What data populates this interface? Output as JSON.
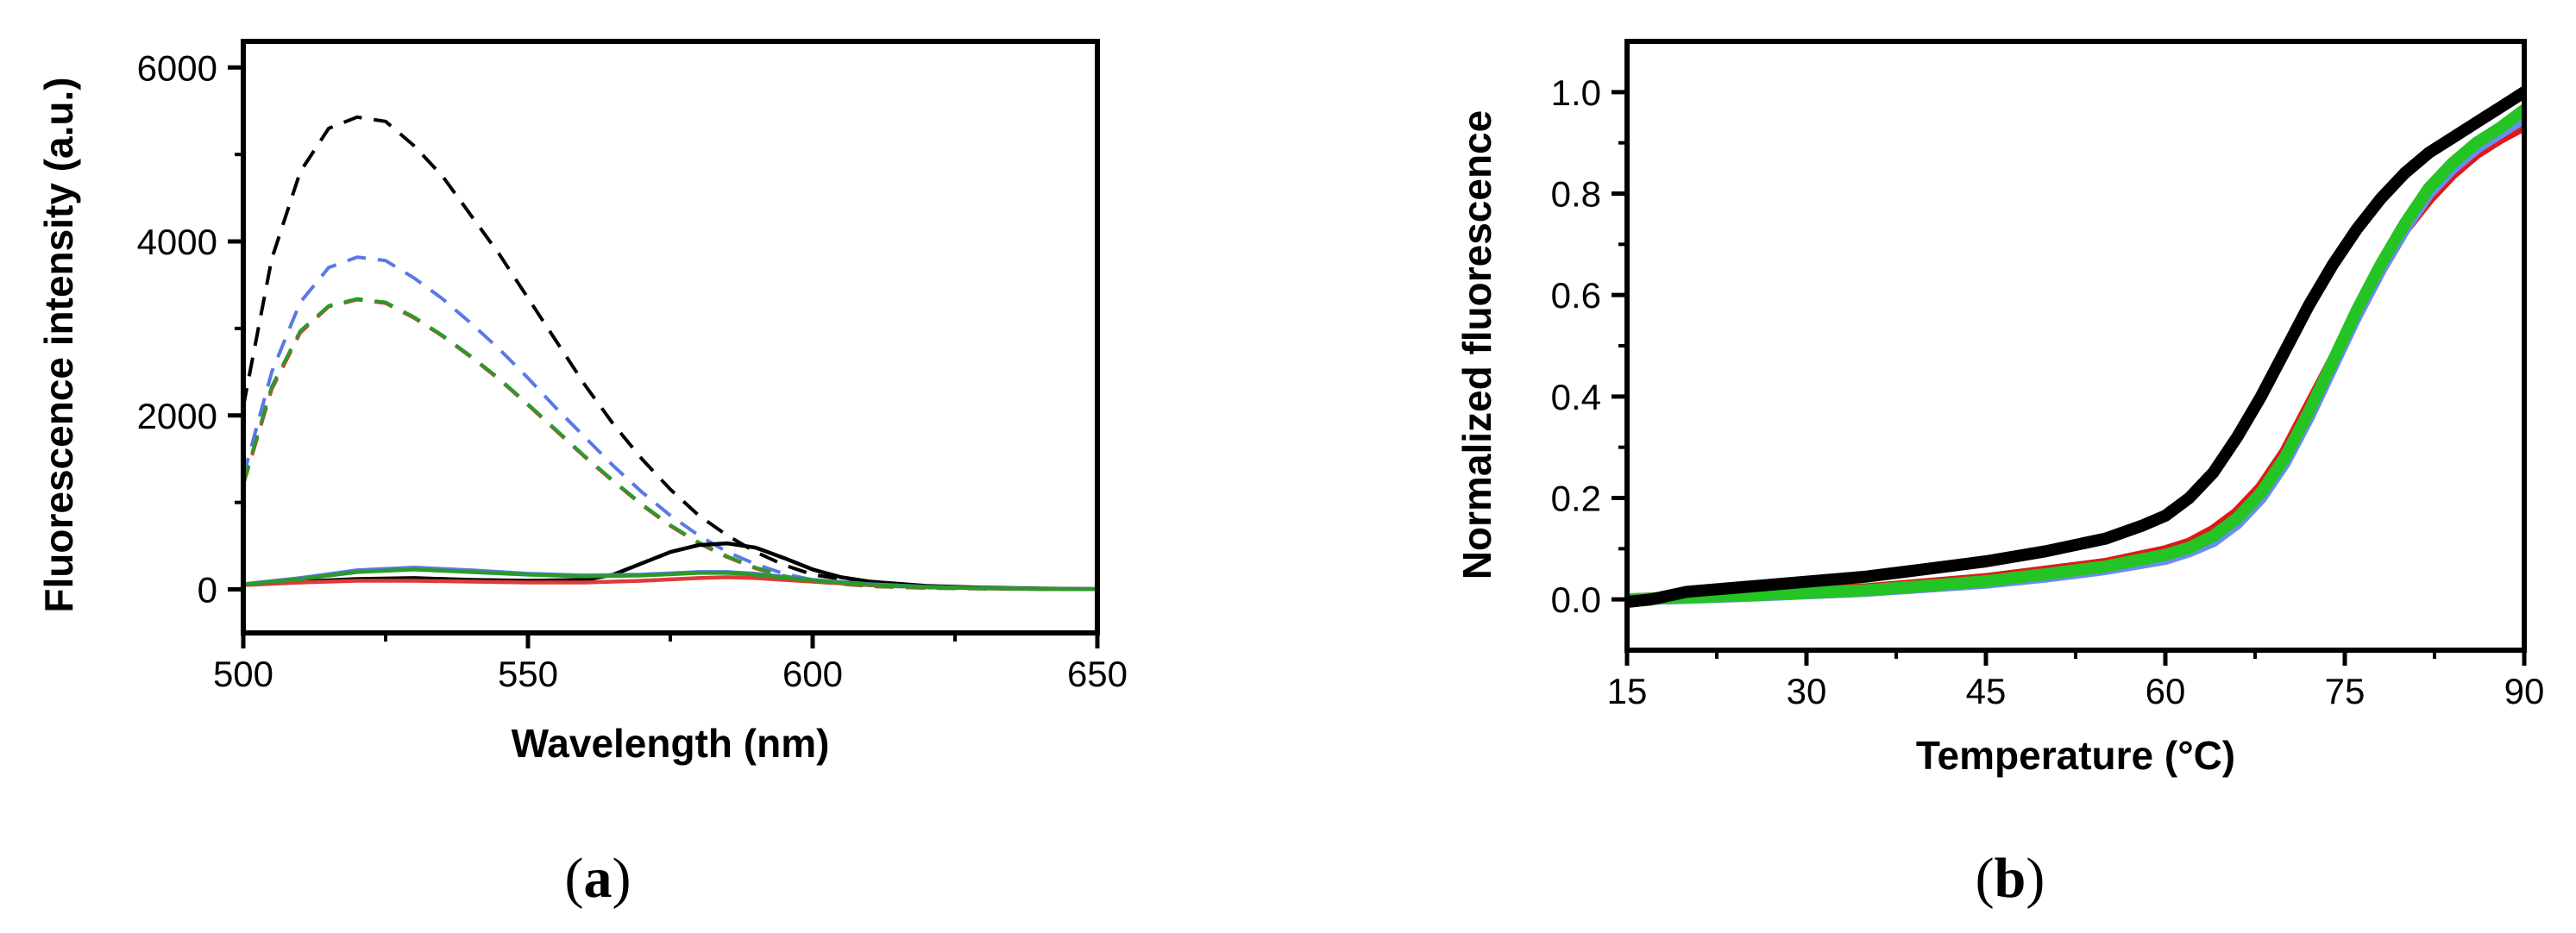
{
  "chart_data": [
    {
      "type": "line",
      "panel_label_open": "(",
      "panel_label_letter": "a",
      "panel_label_close": ")",
      "xlabel": "Wavelength (nm)",
      "ylabel": "Fluorescence intensity (a.u.)",
      "xlim": [
        500,
        650
      ],
      "ylim": [
        -500,
        6300
      ],
      "xticks": [
        500,
        550,
        600,
        650
      ],
      "yticks": [
        0,
        2000,
        4000,
        6000
      ],
      "grid": false,
      "legend": "none",
      "series": [
        {
          "color": "#000000",
          "dash": true,
          "x": [
            500,
            505,
            510,
            515,
            520,
            525,
            530,
            535,
            540,
            545,
            550,
            555,
            560,
            565,
            570,
            575,
            580,
            585,
            590,
            595,
            600,
            610,
            620,
            630,
            640,
            650
          ],
          "y": [
            2100,
            3800,
            4800,
            5300,
            5430,
            5380,
            5100,
            4750,
            4300,
            3850,
            3350,
            2850,
            2350,
            1900,
            1500,
            1150,
            850,
            620,
            430,
            280,
            170,
            70,
            30,
            15,
            8,
            5
          ]
        },
        {
          "color": "#5b78e6",
          "dash": true,
          "x": [
            500,
            505,
            510,
            515,
            520,
            525,
            530,
            535,
            540,
            545,
            550,
            555,
            560,
            565,
            570,
            575,
            580,
            585,
            590,
            595,
            600,
            610,
            620,
            630,
            640,
            650
          ],
          "y": [
            1300,
            2500,
            3300,
            3700,
            3820,
            3780,
            3580,
            3340,
            3060,
            2760,
            2430,
            2080,
            1750,
            1420,
            1120,
            850,
            620,
            430,
            290,
            180,
            110,
            45,
            20,
            10,
            5,
            3
          ]
        },
        {
          "color": "#e03a3a",
          "dash": true,
          "x": [
            500,
            505,
            510,
            515,
            520,
            525,
            530,
            535,
            540,
            545,
            550,
            555,
            560,
            565,
            570,
            575,
            580,
            585,
            590,
            595,
            600,
            610,
            620,
            630,
            640,
            650
          ],
          "y": [
            1200,
            2300,
            2950,
            3250,
            3330,
            3290,
            3120,
            2910,
            2670,
            2410,
            2120,
            1820,
            1520,
            1240,
            970,
            730,
            530,
            370,
            240,
            150,
            90,
            35,
            15,
            8,
            4,
            2
          ]
        },
        {
          "color": "#2a9a2a",
          "dash": true,
          "x": [
            500,
            505,
            510,
            515,
            520,
            525,
            530,
            535,
            540,
            545,
            550,
            555,
            560,
            565,
            570,
            575,
            580,
            585,
            590,
            595,
            600,
            610,
            620,
            630,
            640,
            650
          ],
          "y": [
            1220,
            2330,
            2970,
            3260,
            3340,
            3300,
            3130,
            2920,
            2680,
            2420,
            2130,
            1830,
            1530,
            1250,
            980,
            740,
            540,
            380,
            250,
            155,
            95,
            38,
            16,
            8,
            4,
            2
          ]
        },
        {
          "color": "#000000",
          "dash": false,
          "x": [
            500,
            510,
            520,
            530,
            540,
            550,
            560,
            565,
            570,
            575,
            580,
            585,
            590,
            595,
            600,
            605,
            610,
            620,
            630,
            640,
            650
          ],
          "y": [
            60,
            90,
            120,
            130,
            110,
            100,
            110,
            170,
            300,
            430,
            510,
            530,
            480,
            360,
            230,
            140,
            90,
            40,
            20,
            10,
            5
          ]
        },
        {
          "color": "#5b78e6",
          "dash": false,
          "x": [
            500,
            510,
            520,
            530,
            540,
            550,
            560,
            570,
            580,
            585,
            590,
            600,
            610,
            620,
            630,
            640,
            650
          ],
          "y": [
            60,
            130,
            220,
            250,
            220,
            180,
            160,
            170,
            200,
            200,
            180,
            110,
            60,
            30,
            15,
            8,
            5
          ]
        },
        {
          "color": "#e03a3a",
          "dash": false,
          "x": [
            500,
            510,
            520,
            530,
            540,
            550,
            560,
            570,
            580,
            585,
            590,
            600,
            610,
            620,
            630,
            640,
            650
          ],
          "y": [
            50,
            80,
            100,
            100,
            90,
            80,
            80,
            100,
            130,
            140,
            130,
            90,
            50,
            25,
            12,
            6,
            3
          ]
        },
        {
          "color": "#2a9a2a",
          "dash": false,
          "x": [
            500,
            510,
            520,
            530,
            540,
            550,
            560,
            570,
            580,
            585,
            590,
            600,
            610,
            620,
            630,
            640,
            650
          ],
          "y": [
            55,
            120,
            200,
            230,
            200,
            170,
            150,
            160,
            190,
            190,
            170,
            105,
            55,
            28,
            13,
            7,
            4
          ]
        }
      ]
    },
    {
      "type": "line",
      "panel_label_open": "(",
      "panel_label_letter": "b",
      "panel_label_close": ")",
      "xlabel": "Temperature (°C)",
      "ylabel": "Normalized fluorescence",
      "xlim": [
        15,
        90
      ],
      "ylim": [
        -0.1,
        1.1
      ],
      "xticks": [
        15,
        30,
        45,
        60,
        75,
        90
      ],
      "yticks": [
        0.0,
        0.2,
        0.4,
        0.6,
        0.8,
        1.0
      ],
      "ytick_labels": [
        "0.0",
        "0.2",
        "0.4",
        "0.6",
        "0.8",
        "1.0"
      ],
      "grid": false,
      "legend": "none",
      "series": [
        {
          "color": "#e01818",
          "x": [
            15,
            20,
            25,
            30,
            35,
            40,
            45,
            50,
            55,
            60,
            62,
            64,
            66,
            68,
            70,
            72,
            74,
            76,
            78,
            80,
            82,
            84,
            86,
            88,
            90
          ],
          "y": [
            0.0,
            0.005,
            0.01,
            0.015,
            0.02,
            0.03,
            0.04,
            0.055,
            0.07,
            0.095,
            0.11,
            0.135,
            0.17,
            0.22,
            0.29,
            0.38,
            0.47,
            0.56,
            0.65,
            0.73,
            0.79,
            0.84,
            0.88,
            0.91,
            0.935
          ]
        },
        {
          "color": "#6b8cf0",
          "x": [
            15,
            20,
            25,
            30,
            35,
            40,
            45,
            50,
            55,
            60,
            62,
            64,
            66,
            68,
            70,
            72,
            74,
            76,
            78,
            80,
            82,
            84,
            86,
            88,
            90
          ],
          "y": [
            0.0,
            0.003,
            0.007,
            0.012,
            0.017,
            0.025,
            0.033,
            0.045,
            0.06,
            0.08,
            0.095,
            0.115,
            0.15,
            0.2,
            0.27,
            0.36,
            0.46,
            0.56,
            0.65,
            0.73,
            0.8,
            0.85,
            0.89,
            0.92,
            0.95
          ]
        },
        {
          "color": "#24c424",
          "x": [
            15,
            20,
            25,
            30,
            35,
            40,
            45,
            50,
            55,
            60,
            62,
            64,
            66,
            68,
            70,
            72,
            74,
            76,
            78,
            80,
            82,
            84,
            86,
            88,
            90
          ],
          "y": [
            0.0,
            0.004,
            0.008,
            0.013,
            0.018,
            0.027,
            0.036,
            0.05,
            0.065,
            0.088,
            0.102,
            0.125,
            0.16,
            0.21,
            0.28,
            0.37,
            0.47,
            0.57,
            0.66,
            0.74,
            0.81,
            0.86,
            0.9,
            0.93,
            0.965
          ]
        },
        {
          "color": "#000000",
          "x": [
            15,
            17,
            20,
            25,
            30,
            35,
            40,
            45,
            50,
            55,
            58,
            60,
            62,
            64,
            66,
            68,
            70,
            72,
            74,
            76,
            78,
            80,
            82,
            84,
            86,
            88,
            90
          ],
          "y": [
            -0.005,
            0.0,
            0.015,
            0.025,
            0.035,
            0.045,
            0.06,
            0.075,
            0.095,
            0.12,
            0.145,
            0.165,
            0.2,
            0.25,
            0.32,
            0.4,
            0.49,
            0.58,
            0.66,
            0.73,
            0.79,
            0.84,
            0.88,
            0.91,
            0.94,
            0.97,
            1.0
          ]
        }
      ]
    }
  ]
}
